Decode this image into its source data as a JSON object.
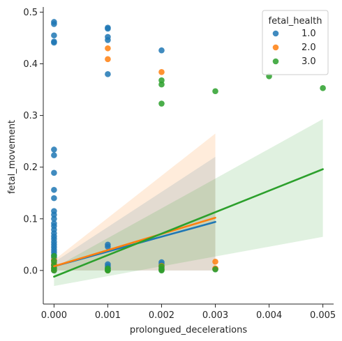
{
  "chart_data": {
    "type": "scatter",
    "xlabel": "prolongued_decelerations",
    "ylabel": "fetal_movement",
    "xlim": [
      -0.0002,
      0.0052
    ],
    "ylim": [
      -0.065,
      0.51
    ],
    "xticks": [
      "0.000",
      "0.001",
      "0.002",
      "0.003",
      "0.004",
      "0.005"
    ],
    "xtick_values": [
      0,
      0.001,
      0.002,
      0.003,
      0.004,
      0.005
    ],
    "yticks": [
      "0.0",
      "0.1",
      "0.2",
      "0.3",
      "0.4",
      "0.5"
    ],
    "ytick_values": [
      0,
      0.1,
      0.2,
      0.3,
      0.4,
      0.5
    ],
    "grid": false,
    "legend": {
      "title": "fetal_health",
      "placement": "top-right"
    },
    "series": [
      {
        "name": "1.0",
        "color": "#1f77b4",
        "points": [
          [
            0,
            0.481
          ],
          [
            0,
            0.477
          ],
          [
            0,
            0.455
          ],
          [
            0,
            0.443
          ],
          [
            0,
            0.441
          ],
          [
            0,
            0.234
          ],
          [
            0,
            0.223
          ],
          [
            0,
            0.189
          ],
          [
            0,
            0.156
          ],
          [
            0,
            0.14
          ],
          [
            0,
            0.115
          ],
          [
            0,
            0.108
          ],
          [
            0,
            0.1
          ],
          [
            0,
            0.091
          ],
          [
            0,
            0.086
          ],
          [
            0,
            0.079
          ],
          [
            0,
            0.072
          ],
          [
            0,
            0.066
          ],
          [
            0,
            0.061
          ],
          [
            0,
            0.055
          ],
          [
            0,
            0.05
          ],
          [
            0,
            0.045
          ],
          [
            0,
            0.04
          ],
          [
            0,
            0.035
          ],
          [
            0,
            0.03
          ],
          [
            0,
            0.025
          ],
          [
            0,
            0.02
          ],
          [
            0,
            0.015
          ],
          [
            0,
            0.01
          ],
          [
            0,
            0.005
          ],
          [
            0,
            0.0
          ],
          [
            0.001,
            0.47
          ],
          [
            0.001,
            0.468
          ],
          [
            0.001,
            0.452
          ],
          [
            0.001,
            0.446
          ],
          [
            0.001,
            0.38
          ],
          [
            0.001,
            0.05
          ],
          [
            0.001,
            0.046
          ],
          [
            0.001,
            0.012
          ],
          [
            0.001,
            0.008
          ],
          [
            0.001,
            0.004
          ],
          [
            0.001,
            0.0
          ],
          [
            0.002,
            0.426
          ],
          [
            0.002,
            0.016
          ],
          [
            0.002,
            0.012
          ],
          [
            0.002,
            0.006
          ],
          [
            0.002,
            0.001
          ],
          [
            0.003,
            0.003
          ]
        ],
        "fit": {
          "x_range": [
            0,
            0.003
          ],
          "y_range": [
            0.008,
            0.094
          ],
          "ci_lower": [
            0.0,
            0.0
          ],
          "ci_upper": [
            0.016,
            0.22
          ]
        }
      },
      {
        "name": "2.0",
        "color": "#ff7f0e",
        "points": [
          [
            0,
            0.02
          ],
          [
            0,
            0.012
          ],
          [
            0,
            0.006
          ],
          [
            0,
            0.001
          ],
          [
            0.001,
            0.43
          ],
          [
            0.001,
            0.409
          ],
          [
            0.001,
            0.0
          ],
          [
            0.002,
            0.384
          ],
          [
            0.002,
            0.009
          ],
          [
            0.002,
            0.002
          ],
          [
            0.003,
            0.017
          ],
          [
            0.003,
            0.004
          ]
        ],
        "fit": {
          "x_range": [
            0,
            0.003
          ],
          "y_range": [
            0.008,
            0.102
          ],
          "ci_lower": [
            0.0,
            0.0
          ],
          "ci_upper": [
            0.02,
            0.265
          ]
        }
      },
      {
        "name": "3.0",
        "color": "#2ca02c",
        "points": [
          [
            0,
            0.028
          ],
          [
            0,
            0.018
          ],
          [
            0,
            0.01
          ],
          [
            0,
            0.004
          ],
          [
            0,
            0.0
          ],
          [
            0.001,
            0.004
          ],
          [
            0.001,
            0.001
          ],
          [
            0.001,
            0.0
          ],
          [
            0.002,
            0.368
          ],
          [
            0.002,
            0.36
          ],
          [
            0.002,
            0.323
          ],
          [
            0.002,
            0.008
          ],
          [
            0.002,
            0.003
          ],
          [
            0.002,
            0.0
          ],
          [
            0.003,
            0.347
          ],
          [
            0.003,
            0.002
          ],
          [
            0.004,
            0.376
          ],
          [
            0.005,
            0.353
          ]
        ],
        "fit": {
          "x_range": [
            0,
            0.005
          ],
          "y_range": [
            -0.012,
            0.196
          ],
          "ci_lower": [
            -0.03,
            0.065
          ],
          "ci_upper": [
            0.005,
            0.293
          ]
        }
      }
    ]
  }
}
